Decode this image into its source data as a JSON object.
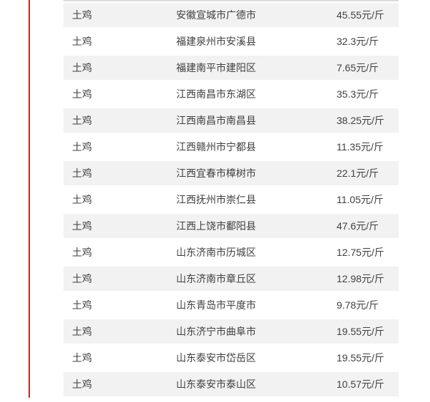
{
  "meta": {
    "accent_color": "#c5281b",
    "row_alt_color": "#f2f2f2",
    "row_color": "#ffffff",
    "text_color": "#3f3f3f",
    "divider_color": "#dcdcdc"
  },
  "table": {
    "columns": [
      "product",
      "location",
      "price"
    ],
    "rows": [
      {
        "product": "土鸡",
        "location": "安徽宣城市广德市",
        "price": "45.55元/斤"
      },
      {
        "product": "土鸡",
        "location": "福建泉州市安溪县",
        "price": "32.3元/斤"
      },
      {
        "product": "土鸡",
        "location": "福建南平市建阳区",
        "price": "7.65元/斤"
      },
      {
        "product": "土鸡",
        "location": "江西南昌市东湖区",
        "price": "35.3元/斤"
      },
      {
        "product": "土鸡",
        "location": "江西南昌市南昌县",
        "price": "38.25元/斤"
      },
      {
        "product": "土鸡",
        "location": "江西赣州市宁都县",
        "price": "11.35元/斤"
      },
      {
        "product": "土鸡",
        "location": "江西宜春市樟树市",
        "price": "22.1元/斤"
      },
      {
        "product": "土鸡",
        "location": "江西抚州市崇仁县",
        "price": "11.05元/斤"
      },
      {
        "product": "土鸡",
        "location": "江西上饶市鄱阳县",
        "price": "47.6元/斤"
      },
      {
        "product": "土鸡",
        "location": "山东济南市历城区",
        "price": "12.75元/斤"
      },
      {
        "product": "土鸡",
        "location": "山东济南市章丘区",
        "price": "12.98元/斤"
      },
      {
        "product": "土鸡",
        "location": "山东青岛市平度市",
        "price": "9.78元/斤"
      },
      {
        "product": "土鸡",
        "location": "山东济宁市曲阜市",
        "price": "19.55元/斤"
      },
      {
        "product": "土鸡",
        "location": "山东泰安市岱岳区",
        "price": "19.55元/斤"
      },
      {
        "product": "土鸡",
        "location": "山东泰安市泰山区",
        "price": "10.57元/斤"
      }
    ]
  }
}
